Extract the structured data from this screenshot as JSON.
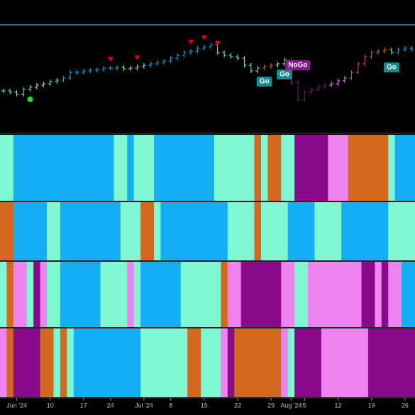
{
  "chart_data": {
    "type": "ohlc-heatmap",
    "categories": [
      null,
      null,
      "Jun '24",
      null,
      null,
      null,
      null,
      "10",
      null,
      null,
      null,
      null,
      "17",
      null,
      null,
      null,
      "24",
      null,
      null,
      null,
      null,
      "Jul '24",
      null,
      null,
      null,
      "8",
      null,
      null,
      null,
      null,
      "15",
      null,
      null,
      null,
      null,
      "22",
      null,
      null,
      null,
      null,
      "29",
      null,
      null,
      "Aug '24",
      null,
      "5",
      null,
      null,
      null,
      null,
      "12",
      null,
      null,
      null,
      null,
      "19",
      null,
      null,
      null,
      null,
      "26",
      null
    ],
    "values": [
      60,
      58,
      55,
      62,
      65,
      68,
      70,
      73,
      75,
      78,
      86,
      86,
      88,
      89,
      90,
      92,
      92,
      93,
      91,
      92,
      94,
      96,
      98,
      100,
      102,
      106,
      110,
      114,
      116,
      120,
      122,
      125,
      114,
      110,
      108,
      106,
      96,
      88,
      92,
      94,
      96,
      98,
      104,
      72,
      48,
      58,
      62,
      66,
      68,
      70,
      74,
      78,
      86,
      98,
      108,
      114,
      116,
      118,
      114,
      118,
      120,
      118
    ],
    "ylim": [
      0,
      150
    ],
    "palette": {
      "G": "#7ff7d2",
      "B": "#14aef5",
      "O": "#d2691e",
      "P": "#8b0a8b",
      "K": "#ee82ee"
    },
    "bar_colors": "GGGGGGGGGBBBBBBBBBGGGGBBBBBBBBBBGGGGGGGOOGGPPPPPPKKKOOOOOOGBBB",
    "heat_rows": [
      "GGBBBBBBBBBBBBBBBGGBGGGBBBBBBBBBGGGGGGOGOOGGPPPPPKKKOOOOOOGBBB",
      "OOBBBBBGGBBBBBBBBBGGGOOGBBBBBBBBBBGGGGOGGGGBBBBGGGGBBBBBBBGGGG",
      "GOKKGPKGGBBBBBBGGGGKGBBBBBBGGGGGGOKKPPPPPPKKGGKKKKKKKKPPKPKKBB",
      "KOPPPPOOGOGBBBBBBBBBBGGGGGGGOOGGGKPOOOOOOOKGPPPPKKKKKKKPPPPPPP"
    ],
    "signals": "....o...........v...v.......v.v.v......a..a.a.............a...",
    "signal_colors": {
      "v": "#e00000",
      "o": "#22dd22"
    },
    "annotations": [
      {
        "text": "Go",
        "color": "#168a8f",
        "side": "below"
      },
      {
        "text": "Go",
        "color": "#168a8f",
        "side": "below"
      },
      {
        "text": "NoGo",
        "color": "#8b1a8b",
        "side": "above"
      },
      {
        "text": "Go",
        "color": "#168a8f",
        "side": "below"
      }
    ]
  }
}
